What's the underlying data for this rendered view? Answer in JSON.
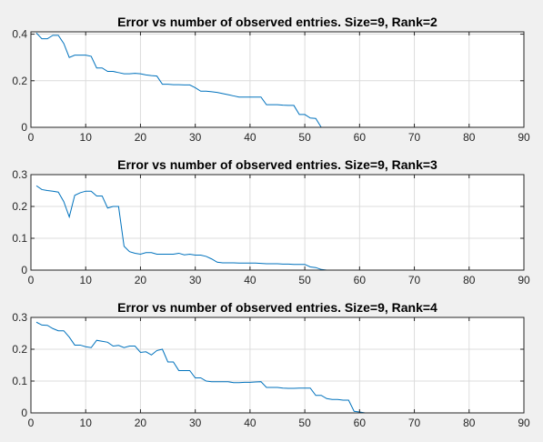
{
  "chart_data": [
    {
      "type": "line",
      "title": "Error vs number of observed entries. Size=9,  Rank=2",
      "xlabel": "",
      "ylabel": "",
      "xlim": [
        0,
        90
      ],
      "ylim": [
        0,
        0.41
      ],
      "xticks": [
        0,
        10,
        20,
        30,
        40,
        50,
        60,
        70,
        80,
        90
      ],
      "xtick_labels": [
        "0",
        "10",
        "20",
        "30",
        "40",
        "50",
        "60",
        "70",
        "80",
        "90"
      ],
      "yticks": [
        0,
        0.2,
        0.4
      ],
      "ytick_labels": [
        "0",
        "0.2",
        "0.4"
      ],
      "grid": true,
      "color": "#0072bd",
      "x": [
        1,
        2,
        3,
        4,
        5,
        6,
        7,
        8,
        9,
        10,
        11,
        12,
        13,
        14,
        15,
        16,
        17,
        18,
        19,
        20,
        21,
        22,
        23,
        24,
        25,
        26,
        27,
        28,
        29,
        30,
        31,
        32,
        33,
        34,
        35,
        36,
        37,
        38,
        39,
        40,
        41,
        42,
        43,
        44,
        45,
        46,
        47,
        48,
        49,
        50,
        51,
        52,
        53,
        54,
        55,
        56,
        57,
        58,
        59,
        60,
        61,
        62,
        63,
        64,
        65,
        66,
        67,
        68,
        69,
        70,
        71,
        72,
        73,
        74,
        75,
        76,
        77,
        78,
        79,
        80,
        81
      ],
      "y": [
        0.405,
        0.38,
        0.38,
        0.395,
        0.395,
        0.36,
        0.3,
        0.31,
        0.31,
        0.31,
        0.305,
        0.255,
        0.255,
        0.24,
        0.24,
        0.235,
        0.23,
        0.23,
        0.232,
        0.23,
        0.225,
        0.222,
        0.22,
        0.185,
        0.185,
        0.183,
        0.183,
        0.182,
        0.182,
        0.17,
        0.155,
        0.155,
        0.153,
        0.15,
        0.145,
        0.14,
        0.135,
        0.13,
        0.13,
        0.13,
        0.13,
        0.13,
        0.097,
        0.097,
        0.097,
        0.095,
        0.094,
        0.094,
        0.055,
        0.055,
        0.04,
        0.038,
        0,
        0,
        0,
        0,
        0,
        0,
        0,
        0,
        0,
        0,
        0,
        0,
        0,
        0,
        0,
        0,
        0,
        0,
        0,
        0,
        0,
        0,
        0,
        0,
        0,
        0,
        0,
        0,
        0
      ]
    },
    {
      "type": "line",
      "title": "Error vs number of observed entries. Size=9,  Rank=3",
      "xlabel": "",
      "ylabel": "",
      "xlim": [
        0,
        90
      ],
      "ylim": [
        0,
        0.3
      ],
      "xticks": [
        0,
        10,
        20,
        30,
        40,
        50,
        60,
        70,
        80,
        90
      ],
      "xtick_labels": [
        "0",
        "10",
        "20",
        "30",
        "40",
        "50",
        "60",
        "70",
        "80",
        "90"
      ],
      "yticks": [
        0,
        0.1,
        0.2,
        0.3
      ],
      "ytick_labels": [
        "0",
        "0.1",
        "0.2",
        "0.3"
      ],
      "grid": true,
      "color": "#0072bd",
      "x": [
        1,
        2,
        3,
        4,
        5,
        6,
        7,
        8,
        9,
        10,
        11,
        12,
        13,
        14,
        15,
        16,
        17,
        18,
        19,
        20,
        21,
        22,
        23,
        24,
        25,
        26,
        27,
        28,
        29,
        30,
        31,
        32,
        33,
        34,
        35,
        36,
        37,
        38,
        39,
        40,
        41,
        42,
        43,
        44,
        45,
        46,
        47,
        48,
        49,
        50,
        51,
        52,
        53,
        54,
        55,
        56,
        57,
        58,
        59,
        60,
        61,
        62,
        63,
        64,
        65,
        66,
        67,
        68,
        69,
        70,
        71,
        72,
        73,
        74,
        75,
        76,
        77,
        78,
        79,
        80,
        81
      ],
      "y": [
        0.265,
        0.253,
        0.25,
        0.248,
        0.245,
        0.215,
        0.167,
        0.235,
        0.243,
        0.248,
        0.248,
        0.233,
        0.233,
        0.195,
        0.2,
        0.2,
        0.075,
        0.058,
        0.053,
        0.05,
        0.055,
        0.055,
        0.05,
        0.05,
        0.05,
        0.05,
        0.053,
        0.048,
        0.05,
        0.047,
        0.047,
        0.043,
        0.035,
        0.025,
        0.023,
        0.023,
        0.023,
        0.022,
        0.022,
        0.022,
        0.022,
        0.021,
        0.02,
        0.02,
        0.02,
        0.019,
        0.019,
        0.018,
        0.018,
        0.018,
        0.01,
        0.008,
        0.002,
        0,
        0,
        0,
        0,
        0,
        0,
        0,
        0,
        0,
        0,
        0,
        0,
        0,
        0,
        0,
        0,
        0,
        0,
        0,
        0,
        0,
        0,
        0,
        0,
        0,
        0,
        0,
        0
      ]
    },
    {
      "type": "line",
      "title": "Error vs number of observed entries. Size=9,  Rank=4",
      "xlabel": "",
      "ylabel": "",
      "xlim": [
        0,
        90
      ],
      "ylim": [
        0,
        0.3
      ],
      "xticks": [
        0,
        10,
        20,
        30,
        40,
        50,
        60,
        70,
        80,
        90
      ],
      "xtick_labels": [
        "0",
        "10",
        "20",
        "30",
        "40",
        "50",
        "60",
        "70",
        "80",
        "90"
      ],
      "yticks": [
        0,
        0.1,
        0.2,
        0.3
      ],
      "ytick_labels": [
        "0",
        "0.1",
        "0.2",
        "0.3"
      ],
      "grid": true,
      "color": "#0072bd",
      "x": [
        1,
        2,
        3,
        4,
        5,
        6,
        7,
        8,
        9,
        10,
        11,
        12,
        13,
        14,
        15,
        16,
        17,
        18,
        19,
        20,
        21,
        22,
        23,
        24,
        25,
        26,
        27,
        28,
        29,
        30,
        31,
        32,
        33,
        34,
        35,
        36,
        37,
        38,
        39,
        40,
        41,
        42,
        43,
        44,
        45,
        46,
        47,
        48,
        49,
        50,
        51,
        52,
        53,
        54,
        55,
        56,
        57,
        58,
        59,
        60,
        61,
        62,
        63,
        64,
        65,
        66,
        67,
        68,
        69,
        70,
        71,
        72,
        73,
        74,
        75,
        76,
        77,
        78,
        79,
        80,
        81
      ],
      "y": [
        0.285,
        0.276,
        0.275,
        0.265,
        0.258,
        0.258,
        0.238,
        0.213,
        0.213,
        0.208,
        0.205,
        0.228,
        0.225,
        0.222,
        0.21,
        0.212,
        0.205,
        0.21,
        0.21,
        0.19,
        0.192,
        0.182,
        0.196,
        0.2,
        0.16,
        0.16,
        0.133,
        0.133,
        0.133,
        0.11,
        0.11,
        0.1,
        0.098,
        0.098,
        0.098,
        0.098,
        0.095,
        0.095,
        0.096,
        0.096,
        0.097,
        0.098,
        0.08,
        0.08,
        0.08,
        0.078,
        0.077,
        0.077,
        0.078,
        0.078,
        0.078,
        0.055,
        0.055,
        0.045,
        0.042,
        0.042,
        0.04,
        0.04,
        0.005,
        0.003,
        0,
        0,
        0,
        0,
        0,
        0,
        0,
        0,
        0,
        0,
        0,
        0,
        0,
        0,
        0,
        0,
        0,
        0,
        0,
        0,
        0
      ]
    }
  ]
}
